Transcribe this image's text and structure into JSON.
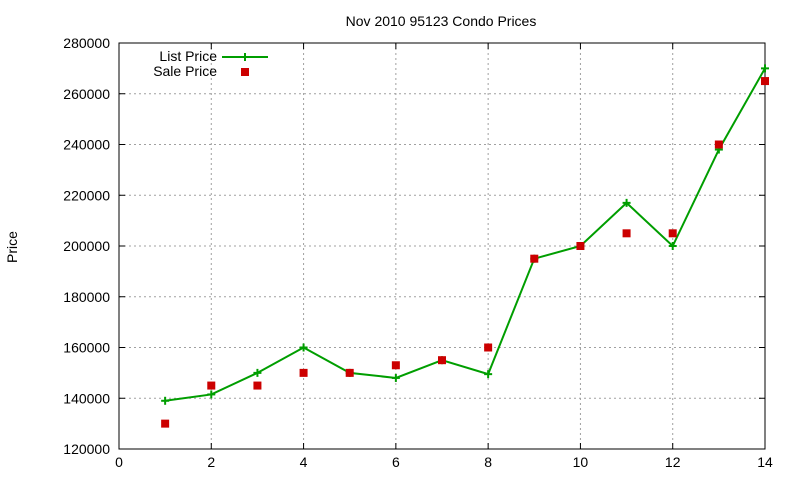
{
  "chart_data": {
    "type": "line",
    "title": "Nov 2010 95123 Condo Prices",
    "xlabel": "",
    "ylabel": "Price",
    "xlim": [
      0,
      14
    ],
    "ylim": [
      120000,
      280000
    ],
    "xticks": [
      0,
      2,
      4,
      6,
      8,
      10,
      12,
      14
    ],
    "yticks": [
      120000,
      140000,
      160000,
      180000,
      200000,
      220000,
      240000,
      260000,
      280000
    ],
    "grid": true,
    "legend_position": "top-left",
    "series": [
      {
        "name": "List Price",
        "style": "line-with-plus-markers",
        "color": "#009e00",
        "x": [
          1,
          2,
          3,
          4,
          5,
          6,
          7,
          8,
          9,
          10,
          11,
          12,
          13,
          14
        ],
        "y": [
          139000,
          141500,
          150000,
          160000,
          150000,
          148000,
          155000,
          149500,
          195000,
          200000,
          217000,
          200000,
          238000,
          270000
        ]
      },
      {
        "name": "Sale Price",
        "style": "square-markers",
        "color": "#cc0000",
        "x": [
          1,
          2,
          3,
          4,
          5,
          6,
          7,
          8,
          9,
          10,
          11,
          12,
          13,
          14
        ],
        "y": [
          130000,
          145000,
          145000,
          150000,
          150000,
          153000,
          155000,
          160000,
          195000,
          200000,
          205000,
          205000,
          240000,
          265000
        ]
      }
    ]
  }
}
